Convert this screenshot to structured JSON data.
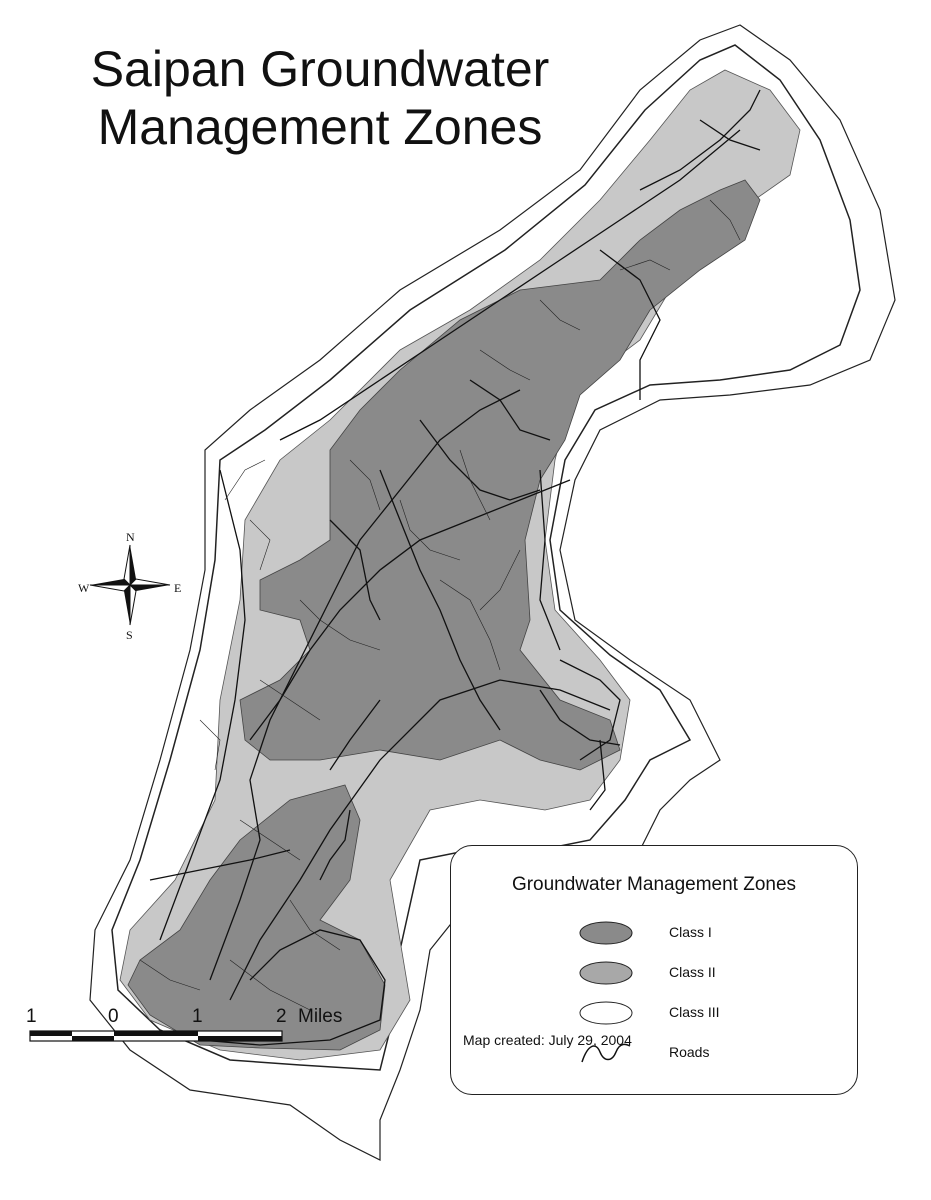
{
  "title": {
    "line1": "Saipan Groundwater",
    "line2": "Management Zones"
  },
  "legend": {
    "title": "Groundwater Management Zones",
    "items": [
      {
        "label": "Class I",
        "fill": "#8a8a8a"
      },
      {
        "label": "Class II",
        "fill": "#a8a8a8"
      },
      {
        "label": "Class III",
        "fill": "#ffffff"
      },
      {
        "label": "Roads",
        "fill": "none"
      }
    ]
  },
  "colors": {
    "class_i": "#8a8a8a",
    "class_ii": "#a8a8a8",
    "class_iii": "#ffffff",
    "outline": "#222222",
    "roads": "#111111"
  },
  "scale_bar": {
    "ticks": [
      "1",
      "0",
      "1",
      "2"
    ],
    "unit": "Miles"
  },
  "compass": {
    "n": "N",
    "s": "S",
    "e": "E",
    "w": "W"
  },
  "credit": "Map created: July 29, 2004"
}
